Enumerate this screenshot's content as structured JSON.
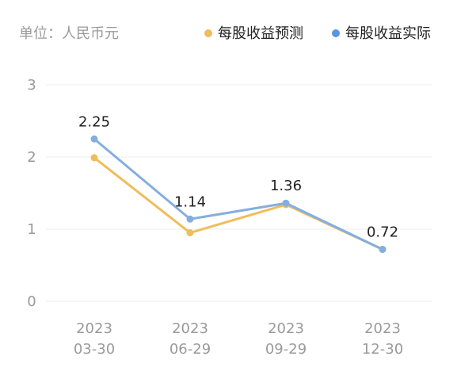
{
  "chart_data": {
    "type": "line",
    "unit_label": "单位：人民币元",
    "categories": [
      [
        "2023",
        "03-30"
      ],
      [
        "2023",
        "06-29"
      ],
      [
        "2023",
        "09-29"
      ],
      [
        "2023",
        "12-30"
      ]
    ],
    "ylim": [
      0,
      3
    ],
    "yticks": [
      "0",
      "1",
      "2",
      "3"
    ],
    "grid": true,
    "legend_position": "top-right",
    "series": [
      {
        "name": "每股收益预测",
        "color": "#f0bd5c",
        "values": [
          1.99,
          0.95,
          1.34,
          0.72
        ],
        "show_labels": false
      },
      {
        "name": "每股收益实际",
        "color": "#85aee0",
        "values": [
          2.25,
          1.14,
          1.36,
          0.72
        ],
        "show_labels": true
      }
    ],
    "data_labels": [
      "2.25",
      "1.14",
      "1.36",
      "0.72"
    ],
    "legend_dot_colors": [
      "#f0bd5c",
      "#5b95e0"
    ]
  }
}
